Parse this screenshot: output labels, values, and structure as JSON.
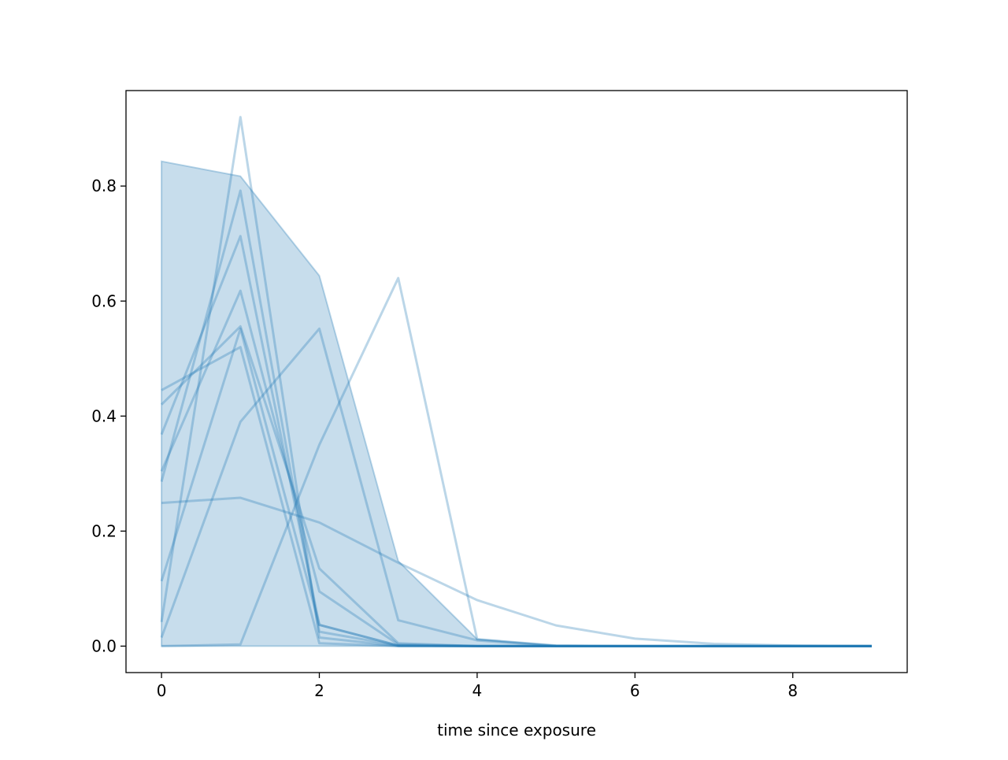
{
  "chart_data": {
    "type": "line",
    "title": "",
    "xlabel": "time since exposure",
    "ylabel": "",
    "xlim": [
      -0.45,
      9.45
    ],
    "ylim": [
      -0.046,
      0.966
    ],
    "xticks": [
      0,
      2,
      4,
      6,
      8
    ],
    "xtick_labels": [
      "0",
      "2",
      "4",
      "6",
      "8"
    ],
    "yticks": [
      0.0,
      0.2,
      0.4,
      0.6,
      0.8
    ],
    "ytick_labels": [
      "0.0",
      "0.2",
      "0.4",
      "0.6",
      "0.8"
    ],
    "grid": false,
    "color": "#1f77b4",
    "x": [
      0,
      1,
      2,
      3,
      4,
      5,
      6,
      7,
      8,
      9
    ],
    "band": {
      "upper": [
        0.843,
        0.817,
        0.644,
        0.148,
        0.012,
        0.001,
        0.0,
        0.0,
        0.0,
        0.0
      ],
      "lower": [
        0,
        0,
        0,
        0,
        0,
        0,
        0,
        0,
        0,
        0
      ]
    },
    "series": [
      {
        "values": [
          0.042,
          0.92,
          0.015,
          0.0,
          0.0,
          0.0,
          0.0,
          0.0,
          0.0,
          0.0
        ]
      },
      {
        "values": [
          0.286,
          0.792,
          0.025,
          0.001,
          0.0,
          0.0,
          0.0,
          0.0,
          0.0,
          0.0
        ]
      },
      {
        "values": [
          0.368,
          0.713,
          0.037,
          0.001,
          0.0,
          0.0,
          0.0,
          0.0,
          0.0,
          0.0
        ]
      },
      {
        "values": [
          0.304,
          0.618,
          0.095,
          0.003,
          0.0,
          0.0,
          0.0,
          0.0,
          0.0,
          0.0
        ]
      },
      {
        "values": [
          0.42,
          0.556,
          0.135,
          0.005,
          0.0,
          0.0,
          0.0,
          0.0,
          0.0,
          0.0
        ]
      },
      {
        "values": [
          0.113,
          0.552,
          0.037,
          0.001,
          0.0,
          0.0,
          0.0,
          0.0,
          0.0,
          0.0
        ]
      },
      {
        "values": [
          0.445,
          0.52,
          0.005,
          0.0,
          0.0,
          0.0,
          0.0,
          0.0,
          0.0,
          0.0
        ]
      },
      {
        "values": [
          0.015,
          0.39,
          0.552,
          0.045,
          0.01,
          0.0,
          0.0,
          0.0,
          0.0,
          0.0
        ]
      },
      {
        "values": [
          0.0,
          0.003,
          0.35,
          0.64,
          0.012,
          0.001,
          0.0,
          0.0,
          0.0,
          0.0
        ]
      },
      {
        "values": [
          0.249,
          0.258,
          0.215,
          0.145,
          0.08,
          0.036,
          0.013,
          0.004,
          0.001,
          0.0
        ]
      }
    ]
  }
}
